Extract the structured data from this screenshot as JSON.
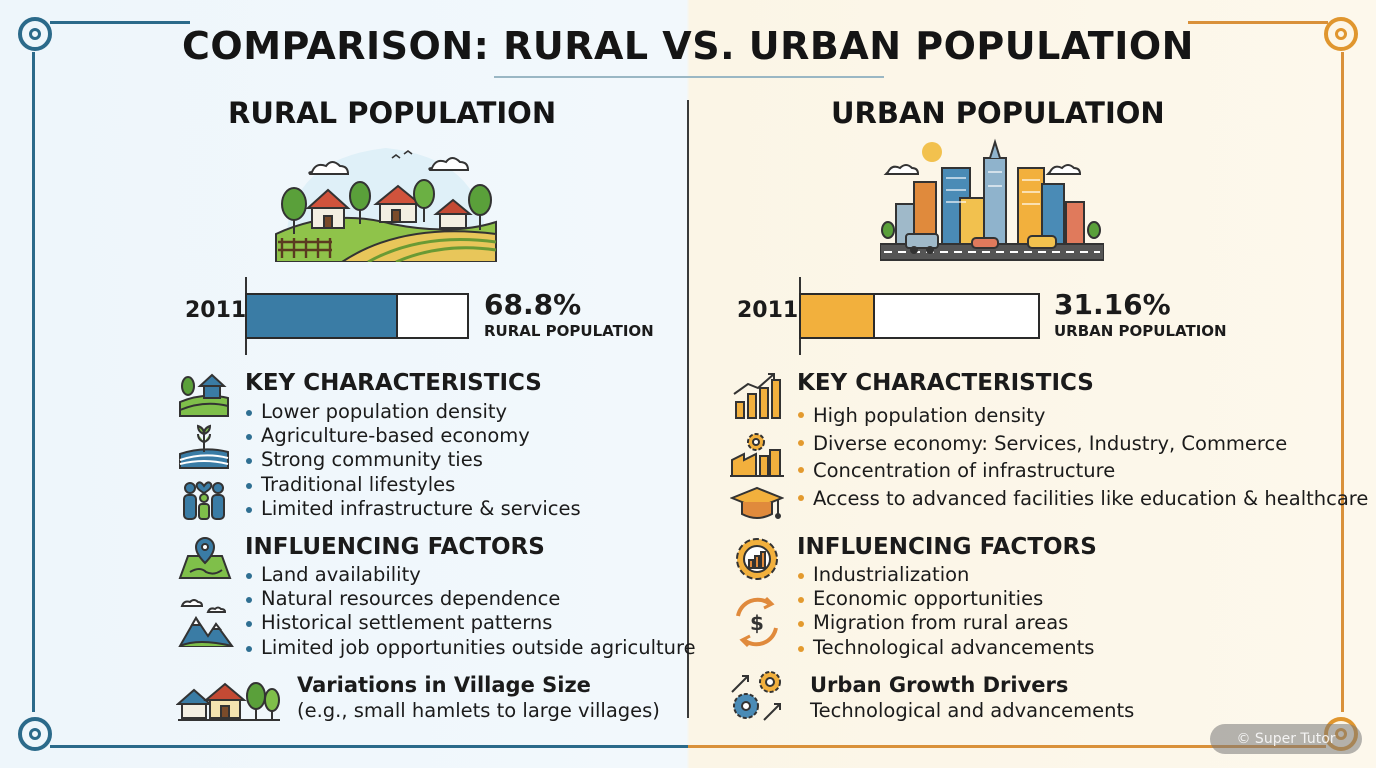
{
  "title": "COMPARISON: RURAL VS. URBAN POPULATION",
  "colors": {
    "rural_accent": "#3a7ca5",
    "urban_accent": "#f2b03d",
    "frame_blue": "#2b6a8a",
    "frame_orange": "#d9913a"
  },
  "rural": {
    "heading": "RURAL POPULATION",
    "year": "2011",
    "percent_text": "68.8%",
    "percent_value": 68.8,
    "percent_label": "RURAL POPULATION",
    "characteristics": {
      "heading": "KEY CHARACTERISTICS",
      "items": [
        "Lower population density",
        "Agriculture-based economy",
        "Strong community ties",
        "Traditional lifestyles",
        "Limited infrastructure & services"
      ]
    },
    "factors": {
      "heading": "INFLUENCING FACTORS",
      "items": [
        "Land availability",
        "Natural resources dependence",
        "Historical settlement patterns",
        "Limited job opportunities outside agriculture"
      ]
    },
    "variations": {
      "heading": "Variations in Village Size",
      "text": "(e.g., small hamlets to large villages)"
    }
  },
  "urban": {
    "heading": "URBAN POPULATION",
    "year": "2011",
    "percent_text": "31.16%",
    "percent_value": 31.16,
    "percent_label": "URBAN POPULATION",
    "characteristics": {
      "heading": "KEY CHARACTERISTICS",
      "items": [
        "High population density",
        "Diverse economy: Services, Industry, Commerce",
        "Concentration of infrastructure",
        "Access to advanced facilities like education & healthcare"
      ]
    },
    "factors": {
      "heading": "INFLUENCING FACTORS",
      "items": [
        "Industrialization",
        "Economic opportunities",
        "Migration from rural areas",
        "Technological advancements"
      ]
    },
    "drivers": {
      "heading": "Urban Growth Drivers",
      "text": "Technological and advancements"
    }
  },
  "watermark": "© Super Tutor",
  "icons": [
    "rural-landscape-icon",
    "city-skyline-icon",
    "house-field-icon",
    "wheat-field-icon",
    "family-icon",
    "map-pin-icon",
    "mountains-icon",
    "village-houses-icon",
    "bar-growth-icon",
    "factory-gear-icon",
    "graduation-cap-icon",
    "gear-chart-icon",
    "dollar-arrows-icon",
    "gears-arrows-icon"
  ]
}
